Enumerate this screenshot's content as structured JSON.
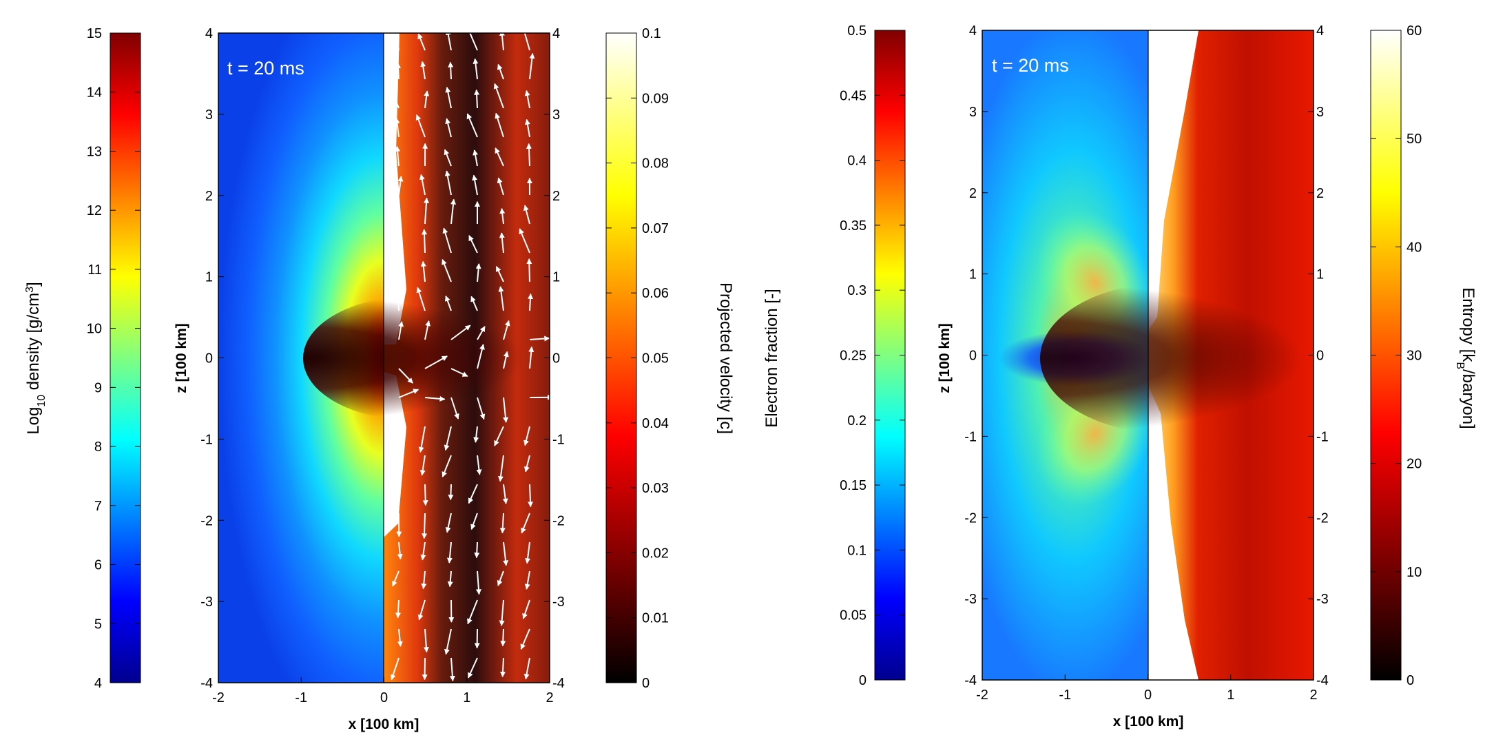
{
  "chart_data": [
    {
      "type": "heatmap",
      "title": "",
      "annotation": "t = 20 ms",
      "xlabel": "x [100 km]",
      "ylabel": "z [100 km]",
      "xlim": [
        -2,
        2
      ],
      "ylim": [
        -4,
        4
      ],
      "x_ticks": [
        "-2",
        "-1",
        "0",
        "1",
        "2"
      ],
      "y_ticks": [
        "-4",
        "-3",
        "-2",
        "-1",
        "0",
        "1",
        "2",
        "3",
        "4"
      ],
      "left_half": {
        "quantity": "density",
        "colorbar_label": "Log10 density [g/cm3]",
        "colorbar_label_main": "Log",
        "colorbar_label_sub": "10",
        "colorbar_label_mid": " density [g/cm",
        "colorbar_label_sup": "3",
        "colorbar_label_end": "]",
        "colormap": "jet",
        "range": [
          4,
          15
        ],
        "ticks": [
          "4",
          "5",
          "6",
          "7",
          "8",
          "9",
          "10",
          "11",
          "12",
          "13",
          "14",
          "15"
        ]
      },
      "right_half": {
        "quantity": "projected velocity",
        "colorbar_label": "Projected velocity [c]",
        "colormap": "hot",
        "range": [
          0,
          0.1
        ],
        "ticks": [
          "0",
          "0.01",
          "0.02",
          "0.03",
          "0.04",
          "0.05",
          "0.06",
          "0.07",
          "0.08",
          "0.09",
          "0.1"
        ],
        "vector_overlay": true
      }
    },
    {
      "type": "heatmap",
      "title": "",
      "annotation": "t = 20 ms",
      "xlabel": "x [100 km]",
      "ylabel": "z [100 km]",
      "xlim": [
        -2,
        2
      ],
      "ylim": [
        -4,
        4
      ],
      "x_ticks": [
        "-2",
        "-1",
        "0",
        "1",
        "2"
      ],
      "y_ticks": [
        "-4",
        "-3",
        "-2",
        "-1",
        "0",
        "1",
        "2",
        "3",
        "4"
      ],
      "left_half": {
        "quantity": "electron fraction",
        "colorbar_label": "Electron fraction [-]",
        "colormap": "jet",
        "range": [
          0,
          0.5
        ],
        "ticks": [
          "0",
          "0.05",
          "0.1",
          "0.15",
          "0.2",
          "0.25",
          "0.3",
          "0.35",
          "0.4",
          "0.45",
          "0.5"
        ]
      },
      "right_half": {
        "quantity": "entropy",
        "colorbar_label": "Entropy [kB/baryon]",
        "colorbar_label_main": "Entropy [k",
        "colorbar_label_sub": "B",
        "colorbar_label_end": "/baryon]",
        "colormap": "hot",
        "range": [
          0,
          60
        ],
        "ticks": [
          "0",
          "10",
          "20",
          "30",
          "40",
          "50",
          "60"
        ]
      }
    }
  ]
}
